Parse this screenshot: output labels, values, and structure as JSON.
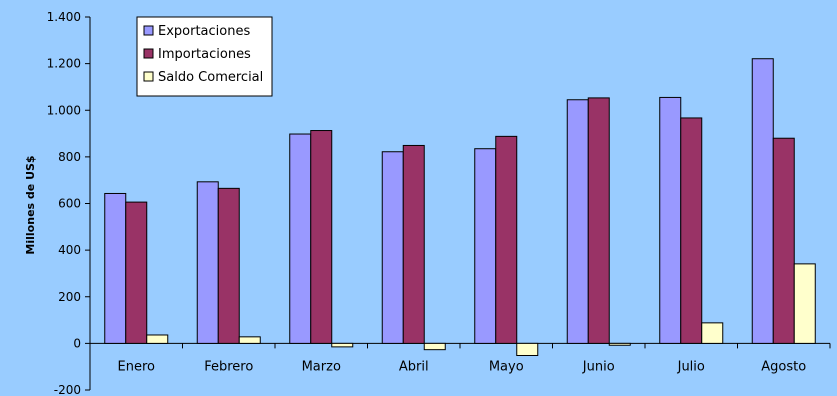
{
  "chart_data": {
    "type": "bar",
    "categories": [
      "Enero",
      "Febrero",
      "Marzo",
      "Abril",
      "Mayo",
      "Junio",
      "Julio",
      "Agosto"
    ],
    "series": [
      {
        "name": "Exportaciones",
        "color": "#9999FF",
        "values": [
          643,
          693,
          898,
          822,
          835,
          1045,
          1055,
          1221
        ]
      },
      {
        "name": "Importaciones",
        "color": "#993366",
        "values": [
          606,
          665,
          913,
          849,
          888,
          1053,
          967,
          880
        ]
      },
      {
        "name": "Saldo Comercial",
        "color": "#FFFFCC",
        "values": [
          36,
          28,
          -15,
          -27,
          -52,
          -8,
          88,
          341
        ]
      }
    ],
    "ylabel": "Millones de US$",
    "ylim": [
      -200,
      1400
    ],
    "yticks": [
      -200,
      0,
      200,
      400,
      600,
      800,
      1000,
      1200,
      1400
    ],
    "ytick_labels": [
      "-200",
      "0",
      "200",
      "400",
      "600",
      "800",
      "1.000",
      "1.200",
      "1.400"
    ],
    "grid": false,
    "legend_position": "top-left",
    "background_color": "#99CCFF"
  }
}
